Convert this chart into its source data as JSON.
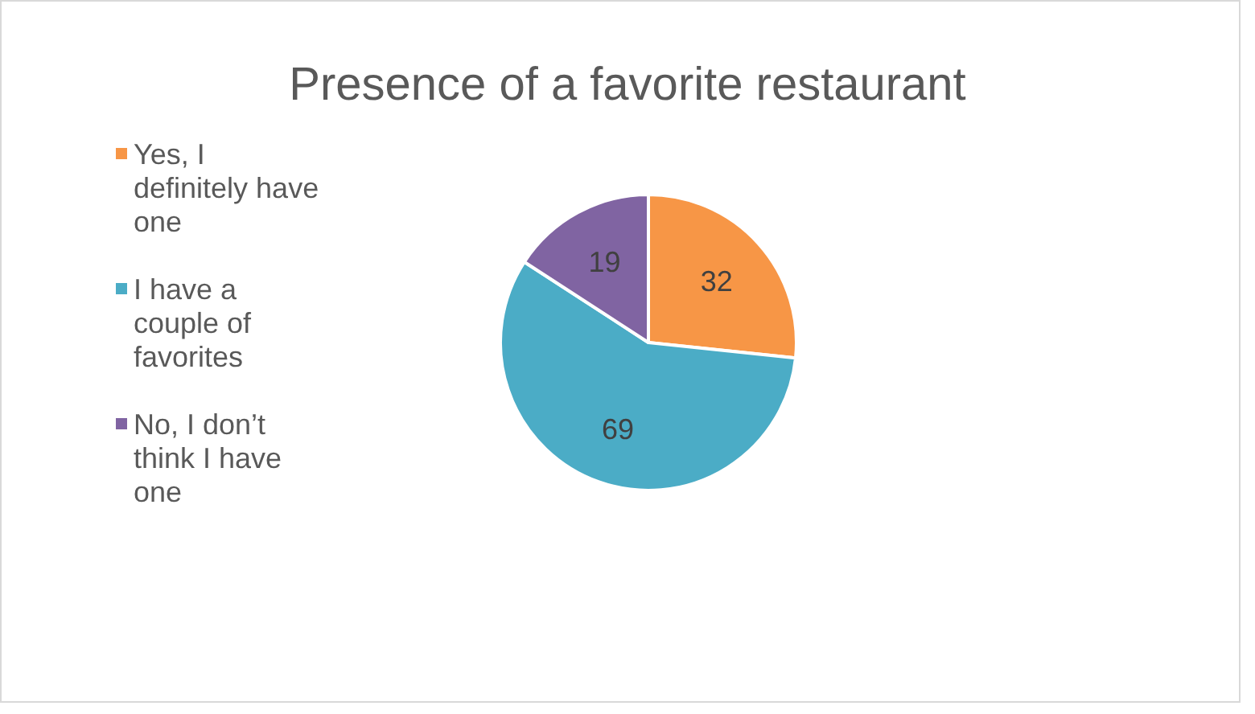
{
  "chart_data": {
    "type": "pie",
    "title": "Presence of a favorite restaurant",
    "categories": [
      "Yes, I definitely have one",
      "I have a couple of favorites",
      "No, I don’t think I have one"
    ],
    "values": [
      32,
      69,
      19
    ],
    "colors": [
      "#f79646",
      "#4bacc6",
      "#8064a2"
    ],
    "data_labels": true,
    "legend": "left"
  }
}
